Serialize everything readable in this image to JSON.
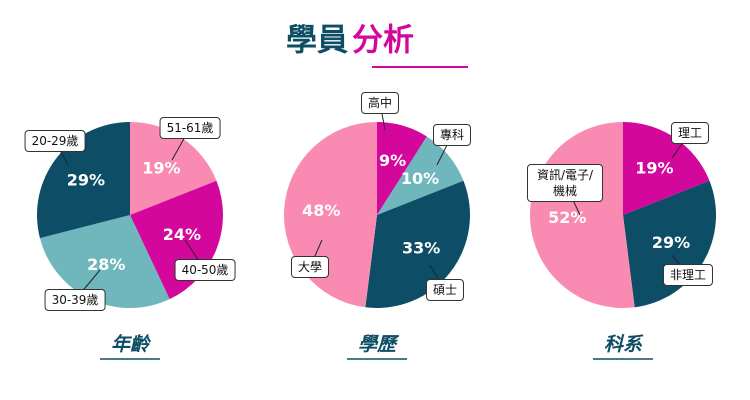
{
  "header": {
    "title": [
      "學員",
      "分析"
    ]
  },
  "chart_data": [
    {
      "type": "pie",
      "title": "年齡",
      "categories": [
        "51-61歲",
        "40-50歲",
        "30-39歲",
        "20-29歲"
      ],
      "values": [
        19,
        24,
        28,
        29
      ],
      "value_labels": [
        "19%",
        "24%",
        "28%",
        "29%"
      ],
      "colors": [
        "#f98bb3",
        "#d4079d",
        "#6fb7bd",
        "#0d4d66"
      ]
    },
    {
      "type": "pie",
      "title": "學歷",
      "categories": [
        "高中",
        "專科",
        "碩士",
        "大學"
      ],
      "values": [
        9,
        10,
        33,
        48
      ],
      "value_labels": [
        "9%",
        "10%",
        "33%",
        "48%"
      ],
      "colors": [
        "#d4079d",
        "#6fb7bd",
        "#0d4d66",
        "#f98bb3"
      ]
    },
    {
      "type": "pie",
      "title": "科系",
      "categories": [
        "理工",
        "非理工",
        "資訊/電子/機械"
      ],
      "values": [
        19,
        29,
        52
      ],
      "value_labels": [
        "19%",
        "29%",
        "52%"
      ],
      "colors": [
        "#d4079d",
        "#0d4d66",
        "#f98bb3"
      ]
    }
  ]
}
